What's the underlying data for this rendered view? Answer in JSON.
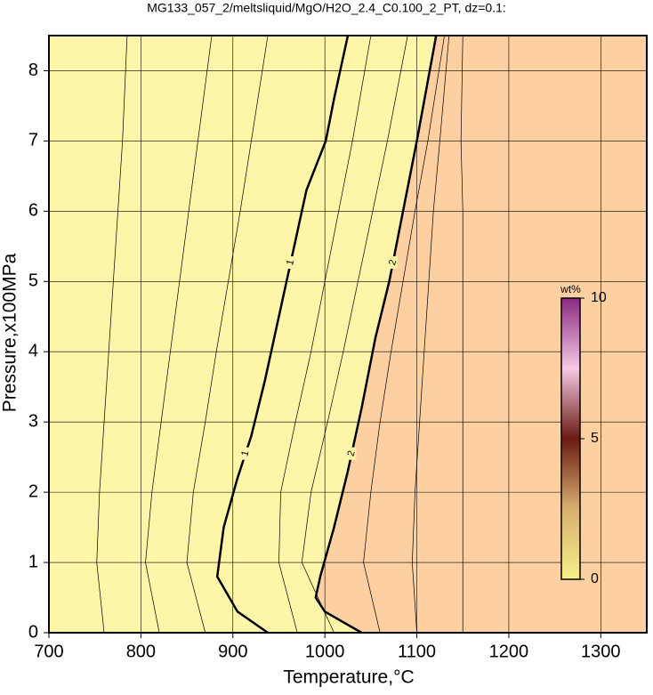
{
  "chart_data": {
    "type": "contour",
    "title": "MG133_057_2/meltsliquid/MgO/H2O_2.4_C0.100_2_PT, dz=0.1:",
    "x_label": "Temperature,°C",
    "y_label": "Pressure,x100MPa",
    "xlim": [
      700,
      1350
    ],
    "xticks": [
      700,
      800,
      900,
      1000,
      1100,
      1200,
      1300
    ],
    "ylim": [
      0,
      8.5
    ],
    "yticks": [
      0,
      1,
      2,
      3,
      4,
      5,
      6,
      7,
      8
    ],
    "grid": true,
    "low_color": "#fdf5a8",
    "high_color": "#fdd0a2",
    "contours": [
      {
        "label": "1",
        "x": [
          938,
          905,
          883,
          890,
          905,
          920,
          935,
          950,
          965,
          980,
          995,
          1001,
          1010,
          1025
        ],
        "y": [
          0,
          0.3,
          0.8,
          1.5,
          2.2,
          2.8,
          3.6,
          4.5,
          5.4,
          6.3,
          6.8,
          7.0,
          7.6,
          8.5
        ]
      },
      {
        "label": "2",
        "x": [
          1040,
          1000,
          990,
          995,
          1010,
          1025,
          1040,
          1055,
          1070,
          1085,
          1100,
          1121
        ],
        "y": [
          0,
          0.3,
          0.5,
          0.8,
          1.5,
          2.3,
          3.2,
          4.2,
          5.0,
          6.0,
          7.0,
          8.5
        ]
      },
      {
        "x": [
          760,
          752,
          755,
          760,
          765,
          770,
          775,
          780,
          785
        ],
        "y": [
          0,
          1,
          2,
          3,
          4,
          5,
          6,
          7,
          8.5
        ]
      },
      {
        "x": [
          820,
          805,
          812,
          822,
          832,
          842,
          852,
          862,
          877
        ],
        "y": [
          0,
          1,
          2,
          3,
          4,
          5,
          6,
          7,
          8.5
        ]
      },
      {
        "x": [
          870,
          850,
          857,
          870,
          882,
          895,
          908,
          920,
          938
        ],
        "y": [
          0,
          1,
          2,
          3,
          4,
          5,
          6,
          7,
          8.5
        ]
      },
      {
        "x": [
          970,
          950,
          952,
          968,
          985,
          1000,
          1015,
          1030,
          1050
        ],
        "y": [
          0,
          1,
          2,
          3,
          4,
          5,
          6,
          7,
          8.5
        ]
      },
      {
        "x": [
          1010,
          975,
          985,
          1003,
          1020,
          1036,
          1052,
          1068,
          1090
        ],
        "y": [
          0,
          1,
          2,
          3,
          4,
          5,
          6,
          7,
          8.5
        ]
      },
      {
        "x": [
          1060,
          1042,
          1050,
          1060,
          1072,
          1085,
          1098,
          1112,
          1130
        ],
        "y": [
          0,
          1,
          2,
          3,
          4,
          5,
          6,
          7,
          8.5
        ]
      },
      {
        "x": [
          1100,
          1095,
          1098,
          1103,
          1108,
          1113,
          1118,
          1125,
          1135
        ],
        "y": [
          0,
          1,
          2,
          3,
          4,
          5,
          6,
          7,
          8.5
        ]
      },
      {
        "x": [
          1150,
          1150,
          1150,
          1150,
          1150,
          1150,
          1150,
          1148,
          1150
        ],
        "y": [
          0,
          1,
          2,
          3,
          4,
          5,
          6,
          7,
          8.5
        ]
      }
    ],
    "colorbar": {
      "label": "wt%",
      "lim": [
        0,
        10
      ],
      "ticks": [
        0,
        5,
        10
      ]
    }
  }
}
